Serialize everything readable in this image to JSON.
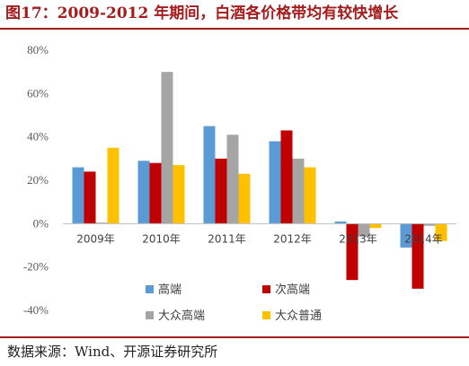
{
  "title": "图17：2009-2012 年期间，白酒各价格带均有较快增长",
  "source": "数据来源：Wind、开源证券研究所",
  "chart_data": {
    "type": "bar",
    "title": "",
    "xlabel": "",
    "ylabel": "",
    "categories": [
      "2009年",
      "2010年",
      "2011年",
      "2012年",
      "2013年",
      "2014年"
    ],
    "series": [
      {
        "name": "高端",
        "color": "#5b9bd5",
        "values": [
          26,
          29,
          45,
          38,
          1,
          -11
        ]
      },
      {
        "name": "次高端",
        "color": "#c00000",
        "values": [
          24,
          28,
          30,
          43,
          -26,
          -30
        ]
      },
      {
        "name": "大众高端",
        "color": "#a5a5a5",
        "values": [
          0.5,
          70,
          41,
          30,
          -6,
          -1
        ]
      },
      {
        "name": "大众普通",
        "color": "#ffc000",
        "values": [
          35,
          27,
          23,
          26,
          -2,
          -8
        ]
      }
    ],
    "ylim": [
      -40,
      80
    ],
    "yticks": [
      -40,
      -20,
      0,
      20,
      40,
      60,
      80
    ],
    "ytick_labels": [
      "-40%",
      "-20%",
      "0%",
      "20%",
      "40%",
      "60%",
      "80%"
    ],
    "grid": false,
    "legend_position": "bottom"
  }
}
